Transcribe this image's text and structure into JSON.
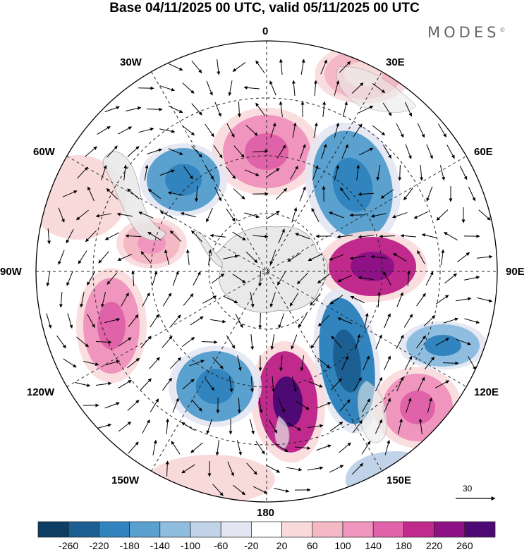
{
  "title": "Base 04/11/2025 00 UTC, valid 05/11/2025 00 UTC",
  "brand": "MODES",
  "brand_mark": "©",
  "longitude_labels": {
    "top": "0",
    "bottom": "180",
    "left": "90W",
    "right": "90E",
    "w30": "30W",
    "e30": "30E",
    "w60": "60W",
    "e60": "60E",
    "w120": "120W",
    "e120": "120E",
    "w150": "150W",
    "e150": "150E"
  },
  "reference_vector": {
    "label": "30",
    "icon": "arrow-right-icon"
  },
  "colorbar": {
    "colors": [
      "#0d3d63",
      "#1c5f92",
      "#3184bd",
      "#5aa1cf",
      "#8fbde0",
      "#c1d3e9",
      "#e3e6f2",
      "#ffffff",
      "#f9dadb",
      "#f5b9c6",
      "#f095bd",
      "#e062a8",
      "#c02a8c",
      "#8e1285",
      "#4e0a74"
    ],
    "labels": [
      "-260",
      "-220",
      "-180",
      "-140",
      "-100",
      "-60",
      "-20",
      "20",
      "60",
      "100",
      "140",
      "180",
      "220",
      "260"
    ]
  },
  "anomalies": [
    {
      "name": "pos-0E",
      "color": "#f095bd",
      "core": "#e062a8"
    },
    {
      "name": "neg-20E",
      "color": "#5aa1cf",
      "core": "#3184bd"
    },
    {
      "name": "pos-80E",
      "color": "#c02a8c",
      "core": "#8e1285"
    },
    {
      "name": "neg-110E",
      "color": "#8fbde0",
      "core": "#3184bd"
    },
    {
      "name": "neg-145E",
      "color": "#3184bd",
      "core": "#1c5f92"
    },
    {
      "name": "pos-120E",
      "color": "#f095bd",
      "core": "#e062a8"
    },
    {
      "name": "pos-170W",
      "color": "#c02a8c",
      "core": "#4e0a74"
    },
    {
      "name": "neg-150W",
      "color": "#5aa1cf",
      "core": "#3184bd"
    },
    {
      "name": "pos-110W",
      "color": "#f095bd",
      "core": "#e062a8"
    },
    {
      "name": "neg-35W",
      "color": "#5aa1cf",
      "core": "#3184bd"
    },
    {
      "name": "pos-60W",
      "color": "#f5b9c6",
      "core": "#f095bd"
    },
    {
      "name": "pos-30E",
      "color": "#f5b9c6",
      "core": "#f9dadb"
    }
  ]
}
